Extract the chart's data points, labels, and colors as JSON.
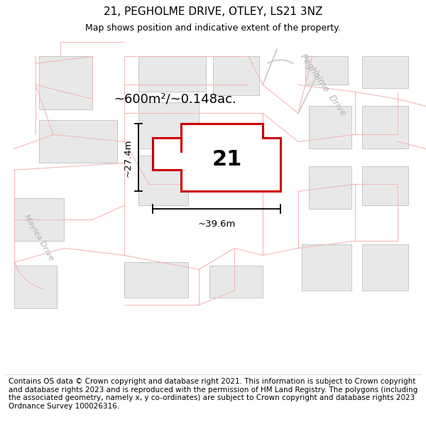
{
  "title": "21, PEGHOLME DRIVE, OTLEY, LS21 3NZ",
  "subtitle": "Map shows position and indicative extent of the property.",
  "footer": "Contains OS data © Crown copyright and database right 2021. This information is subject to Crown copyright and database rights 2023 and is reproduced with the permission of HM Land Registry. The polygons (including the associated geometry, namely x, y co-ordinates) are subject to Crown copyright and database rights 2023 Ordnance Survey 100026316.",
  "area_label": "~600m²/~0.148ac.",
  "width_label": "~39.6m",
  "height_label": "~27.4m",
  "parcel_number": "21",
  "map_bg": "#ffffff",
  "boundary_color": "#f5b8b8",
  "road_outline_color": "#c8c8c8",
  "building_fill": "#e8e8e8",
  "building_stroke": "#c0c0c0",
  "parcel_color": "#cc0000",
  "title_fontsize": 11,
  "subtitle_fontsize": 9,
  "footer_fontsize": 7.5,
  "annotation_fontsize": 13,
  "parcel_label_fontsize": 22,
  "road_label_color": "#b0b0b0"
}
